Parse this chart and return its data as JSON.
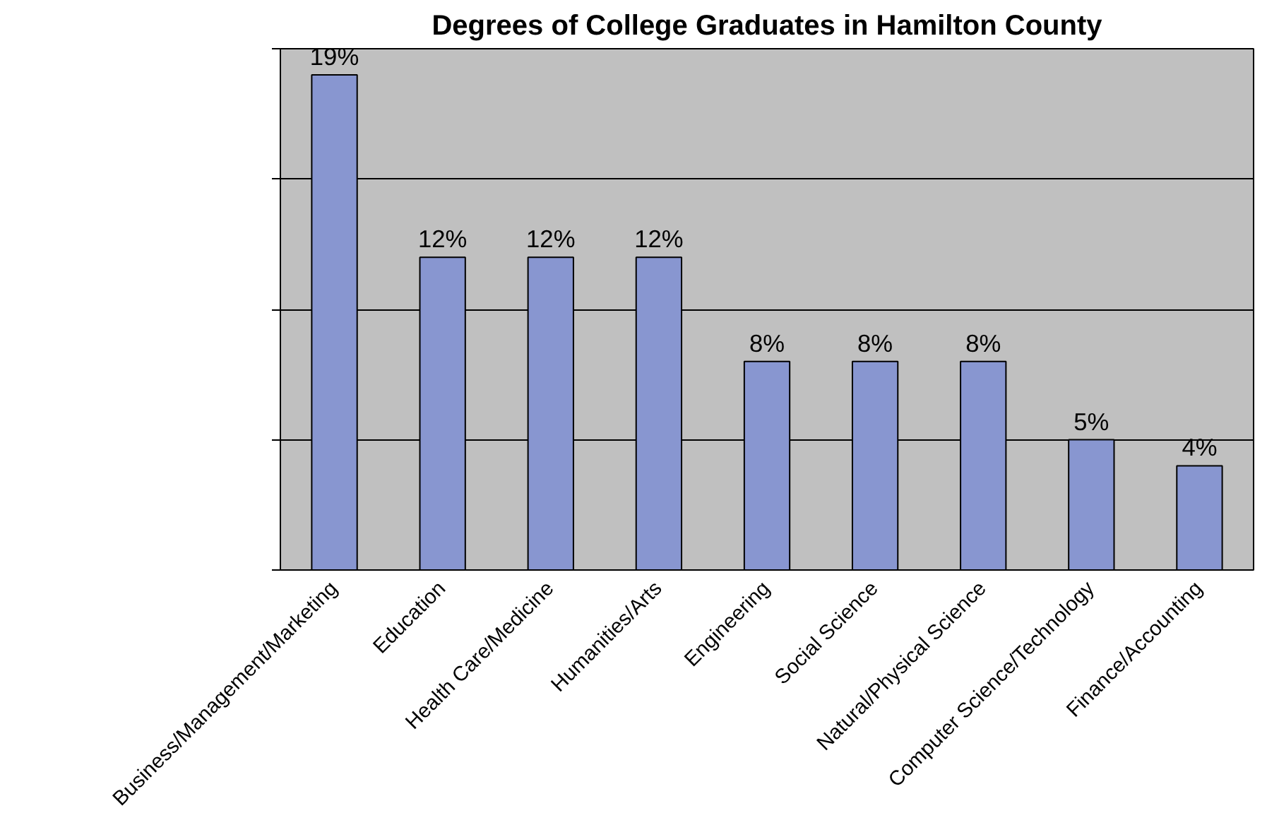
{
  "chart_data": {
    "type": "bar",
    "title": "Degrees of College Graduates in Hamilton County",
    "categories": [
      "Business/Management/Marketing",
      "Education",
      "Health Care/Medicine",
      "Humanities/Arts",
      "Engineering",
      "Social Science",
      "Natural/Physical Science",
      "Computer Science/Technology",
      "Finance/Accounting"
    ],
    "values": [
      19,
      12,
      12,
      12,
      8,
      8,
      8,
      5,
      4
    ],
    "value_labels": [
      "19%",
      "12%",
      "12%",
      "12%",
      "8%",
      "8%",
      "8%",
      "5%",
      "4%"
    ],
    "color": "#8896d0",
    "ylim": [
      0,
      20
    ],
    "yticks": [
      {
        "value": 0,
        "label": null
      },
      {
        "value": 5,
        "label": null
      },
      {
        "value": 10,
        "label": null
      },
      {
        "value": 15,
        "label": null
      },
      {
        "value": 20,
        "label": null
      }
    ],
    "tick_labels": "x",
    "grid": "y"
  }
}
